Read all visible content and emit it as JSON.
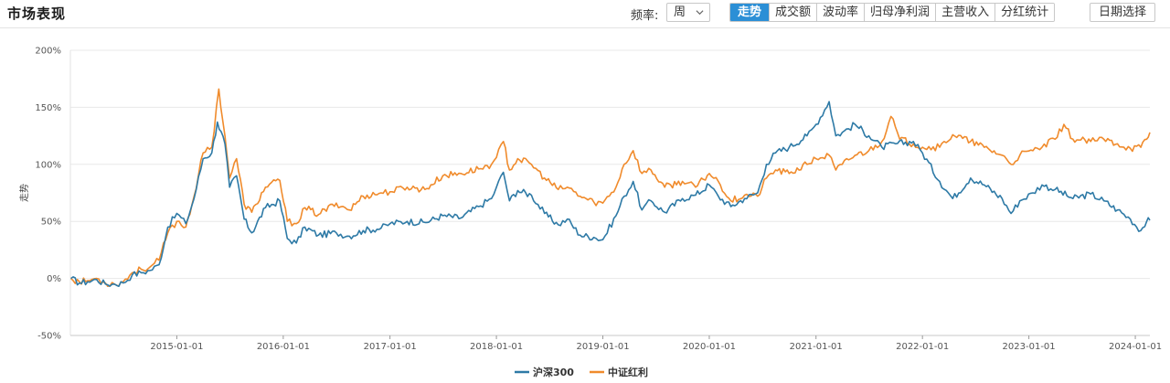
{
  "header": {
    "title": "市场表现",
    "freq_label": "频率:",
    "freq_value": "周",
    "tabs": [
      {
        "label": "走势",
        "active": true
      },
      {
        "label": "成交额",
        "active": false
      },
      {
        "label": "波动率",
        "active": false
      },
      {
        "label": "归母净利润",
        "active": false
      },
      {
        "label": "主营收入",
        "active": false
      },
      {
        "label": "分红统计",
        "active": false
      }
    ],
    "date_button": "日期选择"
  },
  "colors": {
    "hs300": "#2e7aa6",
    "dividend": "#f08b2c",
    "accent": "#2b8fd6",
    "grid": "#e8e8e8"
  },
  "chart_data": {
    "type": "line",
    "title": "",
    "xlabel": "",
    "ylabel": "走势",
    "ylim": [
      -50,
      200
    ],
    "yticks": [
      -50,
      0,
      50,
      100,
      150,
      200
    ],
    "ytick_labels": [
      "-50%",
      "0%",
      "50%",
      "100%",
      "150%",
      "200%"
    ],
    "xlim": [
      "2014-01-01",
      "2024-02-20"
    ],
    "xticks": [
      "2015-01-01",
      "2016-01-01",
      "2017-01-01",
      "2018-01-01",
      "2019-01-01",
      "2020-01-01",
      "2021-01-01",
      "2022-01-01",
      "2023-01-01",
      "2024-01-01"
    ],
    "grid": true,
    "legend_position": "bottom-center",
    "series": [
      {
        "name": "沪深300",
        "points": [
          [
            "2014-01-03",
            0
          ],
          [
            "2014-02-01",
            -4
          ],
          [
            "2014-03-01",
            -3
          ],
          [
            "2014-04-01",
            -1
          ],
          [
            "2014-05-01",
            -5
          ],
          [
            "2014-06-01",
            -5
          ],
          [
            "2014-07-01",
            -4
          ],
          [
            "2014-08-01",
            3
          ],
          [
            "2014-09-01",
            5
          ],
          [
            "2014-10-01",
            7
          ],
          [
            "2014-11-01",
            12
          ],
          [
            "2014-12-01",
            45
          ],
          [
            "2015-01-01",
            57
          ],
          [
            "2015-02-01",
            48
          ],
          [
            "2015-03-01",
            70
          ],
          [
            "2015-04-01",
            105
          ],
          [
            "2015-05-01",
            110
          ],
          [
            "2015-05-20",
            137
          ],
          [
            "2015-06-15",
            118
          ],
          [
            "2015-07-01",
            80
          ],
          [
            "2015-07-25",
            90
          ],
          [
            "2015-08-20",
            52
          ],
          [
            "2015-09-15",
            40
          ],
          [
            "2015-11-01",
            62
          ],
          [
            "2015-12-20",
            68
          ],
          [
            "2016-01-15",
            35
          ],
          [
            "2016-02-15",
            31
          ],
          [
            "2016-03-15",
            45
          ],
          [
            "2016-05-01",
            38
          ],
          [
            "2016-07-01",
            40
          ],
          [
            "2016-08-15",
            37
          ],
          [
            "2016-10-01",
            42
          ],
          [
            "2016-12-01",
            44
          ],
          [
            "2017-01-01",
            48
          ],
          [
            "2017-03-01",
            50
          ],
          [
            "2017-05-01",
            49
          ],
          [
            "2017-07-01",
            55
          ],
          [
            "2017-09-01",
            53
          ],
          [
            "2017-11-01",
            63
          ],
          [
            "2017-12-15",
            70
          ],
          [
            "2018-01-01",
            80
          ],
          [
            "2018-01-25",
            93
          ],
          [
            "2018-02-15",
            68
          ],
          [
            "2018-03-15",
            77
          ],
          [
            "2018-05-01",
            73
          ],
          [
            "2018-06-15",
            57
          ],
          [
            "2018-08-01",
            47
          ],
          [
            "2018-09-01",
            52
          ],
          [
            "2018-10-15",
            38
          ],
          [
            "2018-12-01",
            36
          ],
          [
            "2019-01-01",
            34
          ],
          [
            "2019-02-15",
            55
          ],
          [
            "2019-03-15",
            72
          ],
          [
            "2019-04-15",
            85
          ],
          [
            "2019-05-15",
            60
          ],
          [
            "2019-06-15",
            68
          ],
          [
            "2019-08-01",
            58
          ],
          [
            "2019-10-01",
            70
          ],
          [
            "2019-11-15",
            73
          ],
          [
            "2020-01-01",
            82
          ],
          [
            "2020-02-01",
            72
          ],
          [
            "2020-03-15",
            63
          ],
          [
            "2020-05-01",
            70
          ],
          [
            "2020-06-15",
            75
          ],
          [
            "2020-07-15",
            100
          ],
          [
            "2020-08-15",
            110
          ],
          [
            "2020-10-01",
            115
          ],
          [
            "2020-12-01",
            125
          ],
          [
            "2021-01-01",
            135
          ],
          [
            "2021-02-15",
            155
          ],
          [
            "2021-03-10",
            125
          ],
          [
            "2021-04-01",
            128
          ],
          [
            "2021-05-15",
            135
          ],
          [
            "2021-07-01",
            125
          ],
          [
            "2021-08-15",
            115
          ],
          [
            "2021-10-01",
            118
          ],
          [
            "2021-12-01",
            120
          ],
          [
            "2022-01-01",
            110
          ],
          [
            "2022-03-01",
            85
          ],
          [
            "2022-04-15",
            70
          ],
          [
            "2022-06-15",
            88
          ],
          [
            "2022-08-01",
            82
          ],
          [
            "2022-10-01",
            70
          ],
          [
            "2022-11-01",
            57
          ],
          [
            "2022-12-01",
            68
          ],
          [
            "2023-01-15",
            75
          ],
          [
            "2023-02-15",
            82
          ],
          [
            "2023-04-01",
            78
          ],
          [
            "2023-06-01",
            70
          ],
          [
            "2023-08-01",
            74
          ],
          [
            "2023-09-15",
            68
          ],
          [
            "2023-11-01",
            60
          ],
          [
            "2023-12-15",
            52
          ],
          [
            "2024-01-20",
            42
          ],
          [
            "2024-02-09",
            50
          ],
          [
            "2024-02-20",
            51
          ]
        ]
      },
      {
        "name": "中证红利",
        "points": [
          [
            "2014-01-03",
            0
          ],
          [
            "2014-02-01",
            -3
          ],
          [
            "2014-03-01",
            -2
          ],
          [
            "2014-04-01",
            0
          ],
          [
            "2014-05-01",
            -4
          ],
          [
            "2014-06-01",
            -5
          ],
          [
            "2014-07-01",
            -3
          ],
          [
            "2014-08-01",
            5
          ],
          [
            "2014-09-01",
            8
          ],
          [
            "2014-10-01",
            10
          ],
          [
            "2014-11-01",
            16
          ],
          [
            "2014-12-01",
            40
          ],
          [
            "2015-01-01",
            50
          ],
          [
            "2015-02-01",
            45
          ],
          [
            "2015-03-01",
            72
          ],
          [
            "2015-04-01",
            110
          ],
          [
            "2015-05-01",
            115
          ],
          [
            "2015-05-25",
            166
          ],
          [
            "2015-06-15",
            125
          ],
          [
            "2015-07-01",
            88
          ],
          [
            "2015-07-25",
            105
          ],
          [
            "2015-08-20",
            65
          ],
          [
            "2015-09-15",
            58
          ],
          [
            "2015-11-01",
            80
          ],
          [
            "2015-12-20",
            86
          ],
          [
            "2016-01-15",
            50
          ],
          [
            "2016-02-15",
            48
          ],
          [
            "2016-03-15",
            62
          ],
          [
            "2016-05-01",
            56
          ],
          [
            "2016-07-01",
            66
          ],
          [
            "2016-08-15",
            60
          ],
          [
            "2016-10-01",
            72
          ],
          [
            "2016-12-01",
            75
          ],
          [
            "2017-01-01",
            76
          ],
          [
            "2017-03-01",
            80
          ],
          [
            "2017-05-01",
            78
          ],
          [
            "2017-07-01",
            90
          ],
          [
            "2017-09-01",
            92
          ],
          [
            "2017-11-01",
            96
          ],
          [
            "2017-12-15",
            100
          ],
          [
            "2018-01-01",
            106
          ],
          [
            "2018-01-25",
            120
          ],
          [
            "2018-02-15",
            95
          ],
          [
            "2018-03-15",
            105
          ],
          [
            "2018-05-01",
            100
          ],
          [
            "2018-06-15",
            88
          ],
          [
            "2018-08-01",
            78
          ],
          [
            "2018-09-01",
            80
          ],
          [
            "2018-10-15",
            72
          ],
          [
            "2018-12-01",
            67
          ],
          [
            "2019-01-01",
            66
          ],
          [
            "2019-02-15",
            80
          ],
          [
            "2019-03-15",
            100
          ],
          [
            "2019-04-15",
            112
          ],
          [
            "2019-05-15",
            92
          ],
          [
            "2019-06-15",
            95
          ],
          [
            "2019-08-01",
            80
          ],
          [
            "2019-10-01",
            85
          ],
          [
            "2019-11-15",
            80
          ],
          [
            "2020-01-01",
            92
          ],
          [
            "2020-02-01",
            85
          ],
          [
            "2020-03-15",
            68
          ],
          [
            "2020-05-01",
            73
          ],
          [
            "2020-06-15",
            72
          ],
          [
            "2020-07-15",
            88
          ],
          [
            "2020-08-15",
            95
          ],
          [
            "2020-10-01",
            92
          ],
          [
            "2020-12-01",
            100
          ],
          [
            "2021-01-01",
            105
          ],
          [
            "2021-02-15",
            108
          ],
          [
            "2021-03-10",
            95
          ],
          [
            "2021-04-01",
            100
          ],
          [
            "2021-05-15",
            108
          ],
          [
            "2021-07-01",
            112
          ],
          [
            "2021-08-15",
            120
          ],
          [
            "2021-09-15",
            142
          ],
          [
            "2021-10-15",
            122
          ],
          [
            "2021-12-01",
            118
          ],
          [
            "2022-01-01",
            115
          ],
          [
            "2022-03-01",
            115
          ],
          [
            "2022-04-15",
            126
          ],
          [
            "2022-06-15",
            120
          ],
          [
            "2022-08-01",
            115
          ],
          [
            "2022-10-01",
            108
          ],
          [
            "2022-11-01",
            100
          ],
          [
            "2022-12-01",
            108
          ],
          [
            "2023-01-15",
            112
          ],
          [
            "2023-02-15",
            115
          ],
          [
            "2023-04-01",
            122
          ],
          [
            "2023-05-01",
            135
          ],
          [
            "2023-06-01",
            122
          ],
          [
            "2023-08-01",
            120
          ],
          [
            "2023-09-15",
            122
          ],
          [
            "2023-11-01",
            118
          ],
          [
            "2023-12-15",
            114
          ],
          [
            "2024-01-20",
            115
          ],
          [
            "2024-02-09",
            122
          ],
          [
            "2024-02-20",
            128
          ]
        ]
      }
    ]
  }
}
